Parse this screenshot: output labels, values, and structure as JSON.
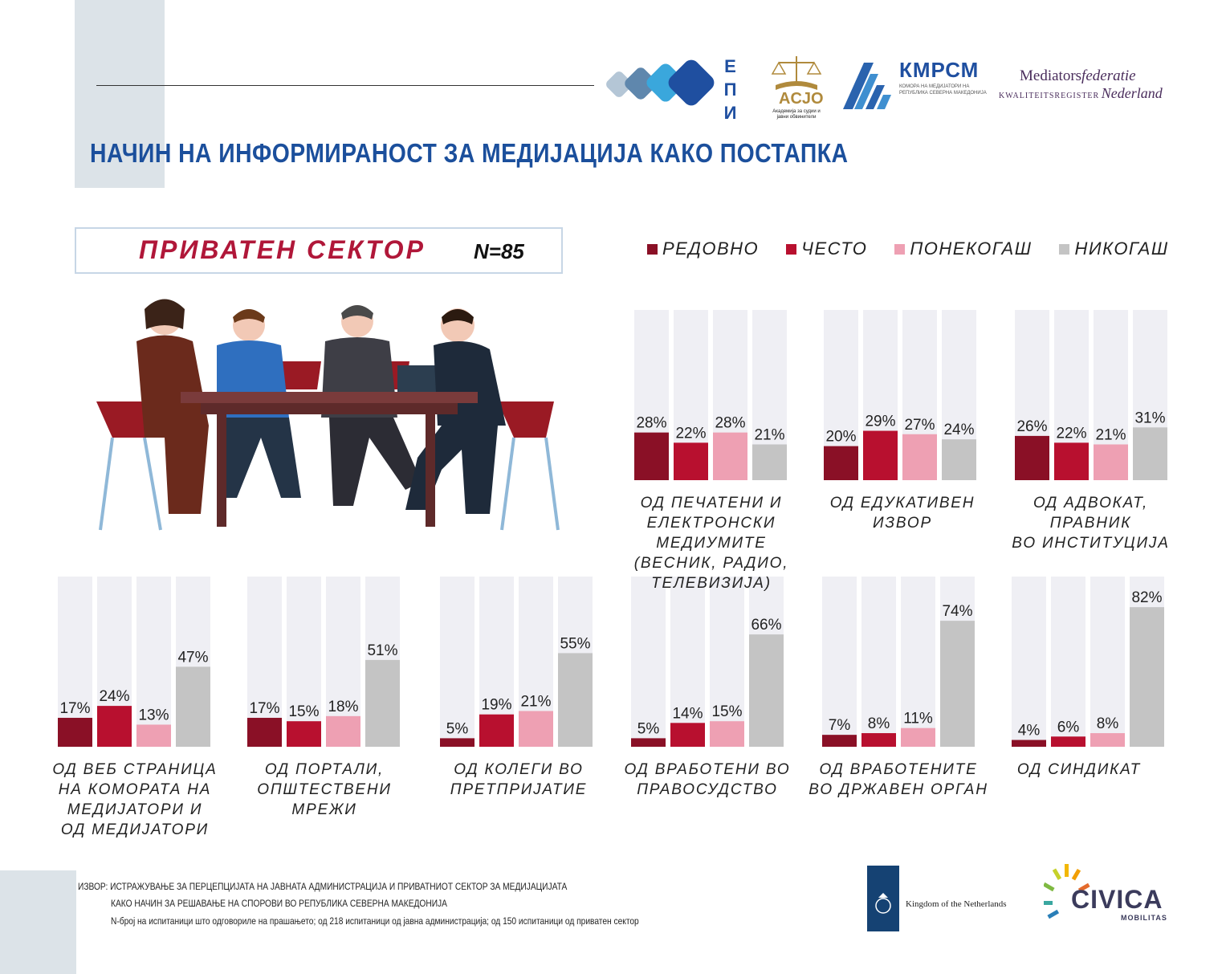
{
  "title": "НАЧИН НА ИНФОРМИРАНОСТ ЗА МЕДИЈАЦИЈА КАКО ПОСТАПКА",
  "sector": {
    "label": "ПРИВАТЕН СЕКТОР",
    "sample": "N=85"
  },
  "logos": {
    "epi": "ЕПИ",
    "acjo": "ACJO",
    "acjo_sub": "Академија за судии и јавни обвинители",
    "kmrsm": "КМРСМ",
    "kmrsm_sub": "КОМОРА НА МЕДИЈАТОРИ НА РЕПУБЛИКА СЕВЕРНА МАКЕДОНИЈА",
    "mfn_a": "Mediators",
    "mfn_b": "federatie",
    "mfn_c": "KWALITEITSREGISTER",
    "mfn_d": "Nederland",
    "netherlands": "Kingdom of the Netherlands",
    "civica": "CIVICA",
    "civica_sub": "MOBILITAS"
  },
  "source": {
    "line1": "ИЗВОР: ИСТРАЖУВАЊЕ ЗА ПЕРЦЕПЦИЈАТА НА ЈАВНАТА АДМИНИСТРАЦИЈА И ПРИВАТНИОТ СЕКТОР ЗА МЕДИЈАЦИЈАТА",
    "line2": "КАКО НАЧИН ЗА РЕШАВАЊЕ НА СПОРОВИ ВО РЕПУБЛИКА СЕВЕРНА МАКЕДОНИЈА",
    "line3": "N-број на испитаници што одговориле на прашањето; од 218 испитаници од јавна администрација; од 150 испитаници од приватен сектор"
  },
  "colors": {
    "track": "#efeff4",
    "regular": "#8a1026",
    "often": "#b8102f",
    "sometimes": "#eea0b3",
    "never": "#c4c4c4"
  },
  "chart_data": {
    "type": "bar",
    "series_names": [
      "РЕДОВНО",
      "ЧЕСТО",
      "ПОНЕКОГАШ",
      "НИКОГАШ"
    ],
    "ylim": [
      0,
      100
    ],
    "groups": [
      {
        "label": "ОД ПЕЧАТЕНИ И\nЕЛЕКТРОНСКИ МЕДИУМИТЕ\n(ВЕСНИК, РАДИО, ТЕЛЕВИЗИЈА)",
        "values": [
          28,
          22,
          28,
          21
        ]
      },
      {
        "label": "ОД ЕДУКАТИВЕН\nИЗВОР",
        "values": [
          20,
          29,
          27,
          24
        ]
      },
      {
        "label": "ОД АДВОКАТ, ПРАВНИК\nВО ИНСТИТУЦИЈА",
        "values": [
          26,
          22,
          21,
          31
        ]
      },
      {
        "label": "ОД ВЕБ СТРАНИЦА\nНА КОМОРАТА НА\nМЕДИЈАТОРИ И\nОД МЕДИЈАТОРИ",
        "values": [
          17,
          24,
          13,
          47
        ]
      },
      {
        "label": "ОД ПОРТАЛИ,\nОПШТЕСТВЕНИ МРЕЖИ",
        "values": [
          17,
          15,
          18,
          51
        ]
      },
      {
        "label": "ОД КОЛЕГИ ВО\nПРЕТПРИЈАТИЕ",
        "values": [
          5,
          19,
          21,
          55
        ]
      },
      {
        "label": "ОД ВРАБОТЕНИ ВО\nПРАВОСУДСТВО",
        "values": [
          5,
          14,
          15,
          66
        ]
      },
      {
        "label": "ОД ВРАБОТЕНИТЕ\nВО ДРЖАВЕН ОРГАН",
        "values": [
          7,
          8,
          11,
          74
        ]
      },
      {
        "label": "ОД СИНДИКАТ",
        "values": [
          4,
          6,
          8,
          82
        ]
      }
    ]
  }
}
